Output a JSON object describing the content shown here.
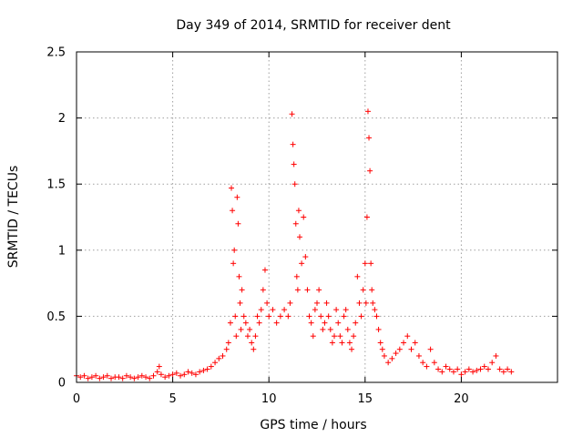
{
  "chart_data": {
    "type": "scatter",
    "title": "Day 349 of 2014, SRMTID for receiver dent",
    "xlabel": "GPS time / hours",
    "ylabel": "SRMTID / TECUs",
    "xlim": [
      0,
      25
    ],
    "ylim": [
      0,
      2.5
    ],
    "xticks": [
      0,
      5,
      10,
      15,
      20
    ],
    "xtick_labels": [
      "0",
      "5",
      "10",
      "15",
      "20"
    ],
    "yticks": [
      0,
      0.5,
      1,
      1.5,
      2,
      2.5
    ],
    "ytick_labels": [
      "0",
      "0.5",
      "1",
      "1.5",
      "2",
      "2.5"
    ],
    "grid": true,
    "marker": "plus",
    "color": "#ff0000",
    "series": [
      {
        "name": "SRMTID",
        "points": [
          [
            0.0,
            0.05
          ],
          [
            0.2,
            0.04
          ],
          [
            0.4,
            0.05
          ],
          [
            0.6,
            0.03
          ],
          [
            0.8,
            0.04
          ],
          [
            1.0,
            0.05
          ],
          [
            1.2,
            0.03
          ],
          [
            1.4,
            0.04
          ],
          [
            1.6,
            0.05
          ],
          [
            1.8,
            0.03
          ],
          [
            2.0,
            0.04
          ],
          [
            2.2,
            0.04
          ],
          [
            2.4,
            0.03
          ],
          [
            2.6,
            0.05
          ],
          [
            2.8,
            0.04
          ],
          [
            3.0,
            0.03
          ],
          [
            3.2,
            0.04
          ],
          [
            3.4,
            0.05
          ],
          [
            3.6,
            0.04
          ],
          [
            3.8,
            0.03
          ],
          [
            4.0,
            0.05
          ],
          [
            4.2,
            0.08
          ],
          [
            4.3,
            0.12
          ],
          [
            4.4,
            0.06
          ],
          [
            4.6,
            0.04
          ],
          [
            4.8,
            0.05
          ],
          [
            5.0,
            0.06
          ],
          [
            5.2,
            0.07
          ],
          [
            5.4,
            0.05
          ],
          [
            5.6,
            0.06
          ],
          [
            5.8,
            0.08
          ],
          [
            6.0,
            0.07
          ],
          [
            6.2,
            0.06
          ],
          [
            6.4,
            0.08
          ],
          [
            6.6,
            0.09
          ],
          [
            6.8,
            0.1
          ],
          [
            7.0,
            0.12
          ],
          [
            7.2,
            0.15
          ],
          [
            7.4,
            0.18
          ],
          [
            7.6,
            0.2
          ],
          [
            7.8,
            0.25
          ],
          [
            7.9,
            0.3
          ],
          [
            8.0,
            0.45
          ],
          [
            8.05,
            1.47
          ],
          [
            8.1,
            1.3
          ],
          [
            8.15,
            0.9
          ],
          [
            8.2,
            1.0
          ],
          [
            8.25,
            0.5
          ],
          [
            8.3,
            0.35
          ],
          [
            8.35,
            1.4
          ],
          [
            8.4,
            1.2
          ],
          [
            8.45,
            0.8
          ],
          [
            8.5,
            0.6
          ],
          [
            8.55,
            0.4
          ],
          [
            8.6,
            0.7
          ],
          [
            8.7,
            0.5
          ],
          [
            8.8,
            0.45
          ],
          [
            8.9,
            0.35
          ],
          [
            9.0,
            0.4
          ],
          [
            9.1,
            0.3
          ],
          [
            9.2,
            0.25
          ],
          [
            9.3,
            0.35
          ],
          [
            9.4,
            0.5
          ],
          [
            9.5,
            0.45
          ],
          [
            9.6,
            0.55
          ],
          [
            9.7,
            0.7
          ],
          [
            9.8,
            0.85
          ],
          [
            9.9,
            0.6
          ],
          [
            10.0,
            0.5
          ],
          [
            10.2,
            0.55
          ],
          [
            10.4,
            0.45
          ],
          [
            10.6,
            0.5
          ],
          [
            10.8,
            0.55
          ],
          [
            11.0,
            0.5
          ],
          [
            11.1,
            0.6
          ],
          [
            11.2,
            2.03
          ],
          [
            11.25,
            1.8
          ],
          [
            11.3,
            1.65
          ],
          [
            11.35,
            1.5
          ],
          [
            11.4,
            1.2
          ],
          [
            11.45,
            0.8
          ],
          [
            11.5,
            0.7
          ],
          [
            11.55,
            1.3
          ],
          [
            11.6,
            1.1
          ],
          [
            11.7,
            0.9
          ],
          [
            11.8,
            1.25
          ],
          [
            11.9,
            0.95
          ],
          [
            12.0,
            0.7
          ],
          [
            12.1,
            0.5
          ],
          [
            12.2,
            0.45
          ],
          [
            12.3,
            0.35
          ],
          [
            12.4,
            0.55
          ],
          [
            12.5,
            0.6
          ],
          [
            12.6,
            0.7
          ],
          [
            12.7,
            0.5
          ],
          [
            12.8,
            0.4
          ],
          [
            12.9,
            0.45
          ],
          [
            13.0,
            0.6
          ],
          [
            13.1,
            0.5
          ],
          [
            13.2,
            0.4
          ],
          [
            13.3,
            0.3
          ],
          [
            13.4,
            0.35
          ],
          [
            13.5,
            0.55
          ],
          [
            13.6,
            0.45
          ],
          [
            13.7,
            0.35
          ],
          [
            13.8,
            0.3
          ],
          [
            13.9,
            0.5
          ],
          [
            14.0,
            0.55
          ],
          [
            14.1,
            0.4
          ],
          [
            14.2,
            0.3
          ],
          [
            14.3,
            0.25
          ],
          [
            14.4,
            0.35
          ],
          [
            14.5,
            0.45
          ],
          [
            14.6,
            0.8
          ],
          [
            14.7,
            0.6
          ],
          [
            14.8,
            0.5
          ],
          [
            14.9,
            0.7
          ],
          [
            15.0,
            0.9
          ],
          [
            15.05,
            0.6
          ],
          [
            15.1,
            1.25
          ],
          [
            15.15,
            2.05
          ],
          [
            15.2,
            1.85
          ],
          [
            15.25,
            1.6
          ],
          [
            15.3,
            0.9
          ],
          [
            15.35,
            0.7
          ],
          [
            15.4,
            0.6
          ],
          [
            15.5,
            0.55
          ],
          [
            15.6,
            0.5
          ],
          [
            15.7,
            0.4
          ],
          [
            15.8,
            0.3
          ],
          [
            15.9,
            0.25
          ],
          [
            16.0,
            0.2
          ],
          [
            16.2,
            0.15
          ],
          [
            16.4,
            0.18
          ],
          [
            16.6,
            0.22
          ],
          [
            16.8,
            0.25
          ],
          [
            17.0,
            0.3
          ],
          [
            17.2,
            0.35
          ],
          [
            17.4,
            0.25
          ],
          [
            17.6,
            0.3
          ],
          [
            17.8,
            0.2
          ],
          [
            18.0,
            0.15
          ],
          [
            18.2,
            0.12
          ],
          [
            18.4,
            0.25
          ],
          [
            18.6,
            0.15
          ],
          [
            18.8,
            0.1
          ],
          [
            19.0,
            0.08
          ],
          [
            19.2,
            0.12
          ],
          [
            19.4,
            0.1
          ],
          [
            19.6,
            0.08
          ],
          [
            19.8,
            0.1
          ],
          [
            20.0,
            0.06
          ],
          [
            20.2,
            0.08
          ],
          [
            20.4,
            0.1
          ],
          [
            20.6,
            0.08
          ],
          [
            20.8,
            0.09
          ],
          [
            21.0,
            0.1
          ],
          [
            21.2,
            0.12
          ],
          [
            21.4,
            0.1
          ],
          [
            21.6,
            0.15
          ],
          [
            21.8,
            0.2
          ],
          [
            22.0,
            0.1
          ],
          [
            22.2,
            0.08
          ],
          [
            22.4,
            0.1
          ],
          [
            22.6,
            0.08
          ]
        ]
      }
    ]
  }
}
